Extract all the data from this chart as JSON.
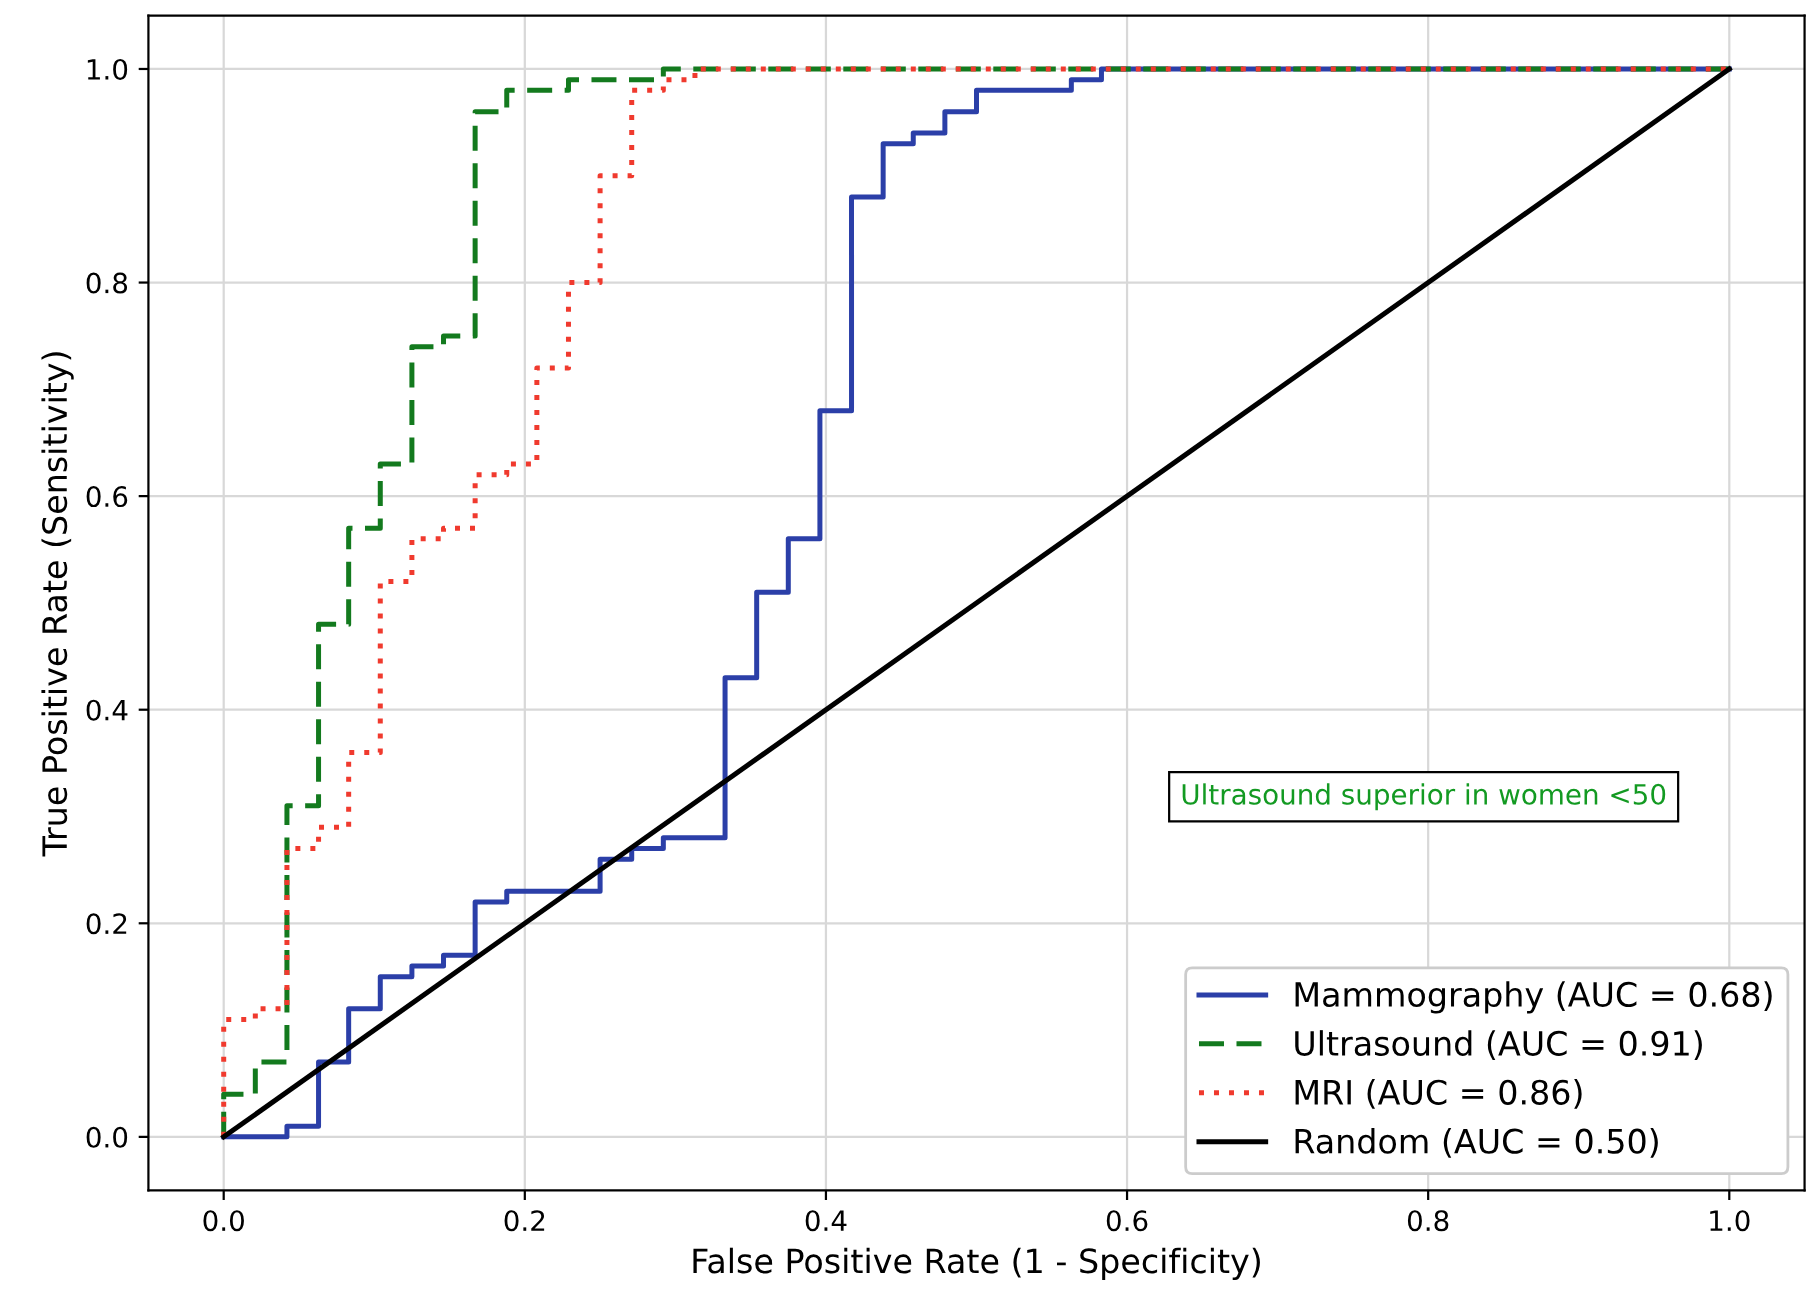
{
  "chart_data": {
    "type": "line",
    "xlabel": "False Positive Rate (1 - Specificity)",
    "ylabel": "True Positive Rate (Sensitivity)",
    "xlim": [
      -0.05,
      1.05
    ],
    "ylim": [
      -0.05,
      1.05
    ],
    "xticks": [
      {
        "value": 0,
        "label": "0.0"
      },
      0.2,
      0.4,
      0.6,
      0.8,
      {
        "value": 1,
        "label": "1.0"
      }
    ],
    "yticks": [
      {
        "value": 0,
        "label": "0.0"
      },
      0.2,
      0.4,
      0.6,
      0.8,
      {
        "value": 1,
        "label": "1.0"
      }
    ],
    "grid": true,
    "legend": "bottom right",
    "marker": "none",
    "annotations": [
      "Ultrasound superior in women <50"
    ],
    "series": [
      {
        "name": "Mammography (AUC = 0.68)",
        "color": "#2b3fa8",
        "line_style": "solid",
        "x": [
          0,
          0.042,
          0.042,
          0.063,
          0.063,
          0.083,
          0.083,
          0.104,
          0.104,
          0.125,
          0.125,
          0.146,
          0.146,
          0.167,
          0.167,
          0.188,
          0.188,
          0.25,
          0.25,
          0.271,
          0.271,
          0.292,
          0.292,
          0.333,
          0.333,
          0.354,
          0.354,
          0.375,
          0.375,
          0.396,
          0.396,
          0.417,
          0.417,
          0.438,
          0.438,
          0.458,
          0.458,
          0.479,
          0.479,
          0.5,
          0.5,
          0.563,
          0.563,
          0.583,
          0.583,
          1
        ],
        "values": [
          0,
          0,
          0.01,
          0.01,
          0.07,
          0.07,
          0.12,
          0.12,
          0.15,
          0.15,
          0.16,
          0.16,
          0.17,
          0.17,
          0.22,
          0.22,
          0.23,
          0.23,
          0.26,
          0.26,
          0.27,
          0.27,
          0.28,
          0.28,
          0.43,
          0.43,
          0.51,
          0.51,
          0.56,
          0.56,
          0.68,
          0.68,
          0.88,
          0.88,
          0.93,
          0.93,
          0.94,
          0.94,
          0.96,
          0.96,
          0.98,
          0.98,
          0.99,
          0.99,
          1,
          1
        ]
      },
      {
        "name": "Ultrasound (AUC = 0.91)",
        "color": "#137a1e",
        "line_style": "dashed",
        "x": [
          0,
          0,
          0.021,
          0.021,
          0.042,
          0.042,
          0.063,
          0.063,
          0.083,
          0.083,
          0.104,
          0.104,
          0.125,
          0.125,
          0.146,
          0.146,
          0.167,
          0.167,
          0.188,
          0.188,
          0.229,
          0.229,
          0.292,
          0.292,
          1
        ],
        "values": [
          0,
          0.04,
          0.04,
          0.07,
          0.07,
          0.31,
          0.31,
          0.48,
          0.48,
          0.57,
          0.57,
          0.63,
          0.63,
          0.74,
          0.74,
          0.75,
          0.75,
          0.96,
          0.96,
          0.98,
          0.98,
          0.99,
          0.99,
          1,
          1
        ]
      },
      {
        "name": "MRI (AUC = 0.86)",
        "color": "#f03a2e",
        "line_style": "dotted",
        "x": [
          0,
          0,
          0.021,
          0.021,
          0.042,
          0.042,
          0.063,
          0.063,
          0.083,
          0.083,
          0.104,
          0.104,
          0.125,
          0.125,
          0.146,
          0.146,
          0.167,
          0.167,
          0.188,
          0.188,
          0.208,
          0.208,
          0.229,
          0.229,
          0.25,
          0.25,
          0.271,
          0.271,
          0.292,
          0.292,
          0.313,
          0.313,
          1
        ],
        "values": [
          0,
          0.11,
          0.11,
          0.12,
          0.12,
          0.27,
          0.27,
          0.29,
          0.29,
          0.36,
          0.36,
          0.52,
          0.52,
          0.56,
          0.56,
          0.57,
          0.57,
          0.62,
          0.62,
          0.63,
          0.63,
          0.72,
          0.72,
          0.8,
          0.8,
          0.9,
          0.9,
          0.98,
          0.98,
          0.99,
          0.99,
          1,
          1
        ]
      },
      {
        "name": "Random (AUC = 0.50)",
        "color": "#000000",
        "line_style": "solid",
        "x": [
          0,
          1
        ],
        "values": [
          0,
          1
        ]
      }
    ]
  }
}
